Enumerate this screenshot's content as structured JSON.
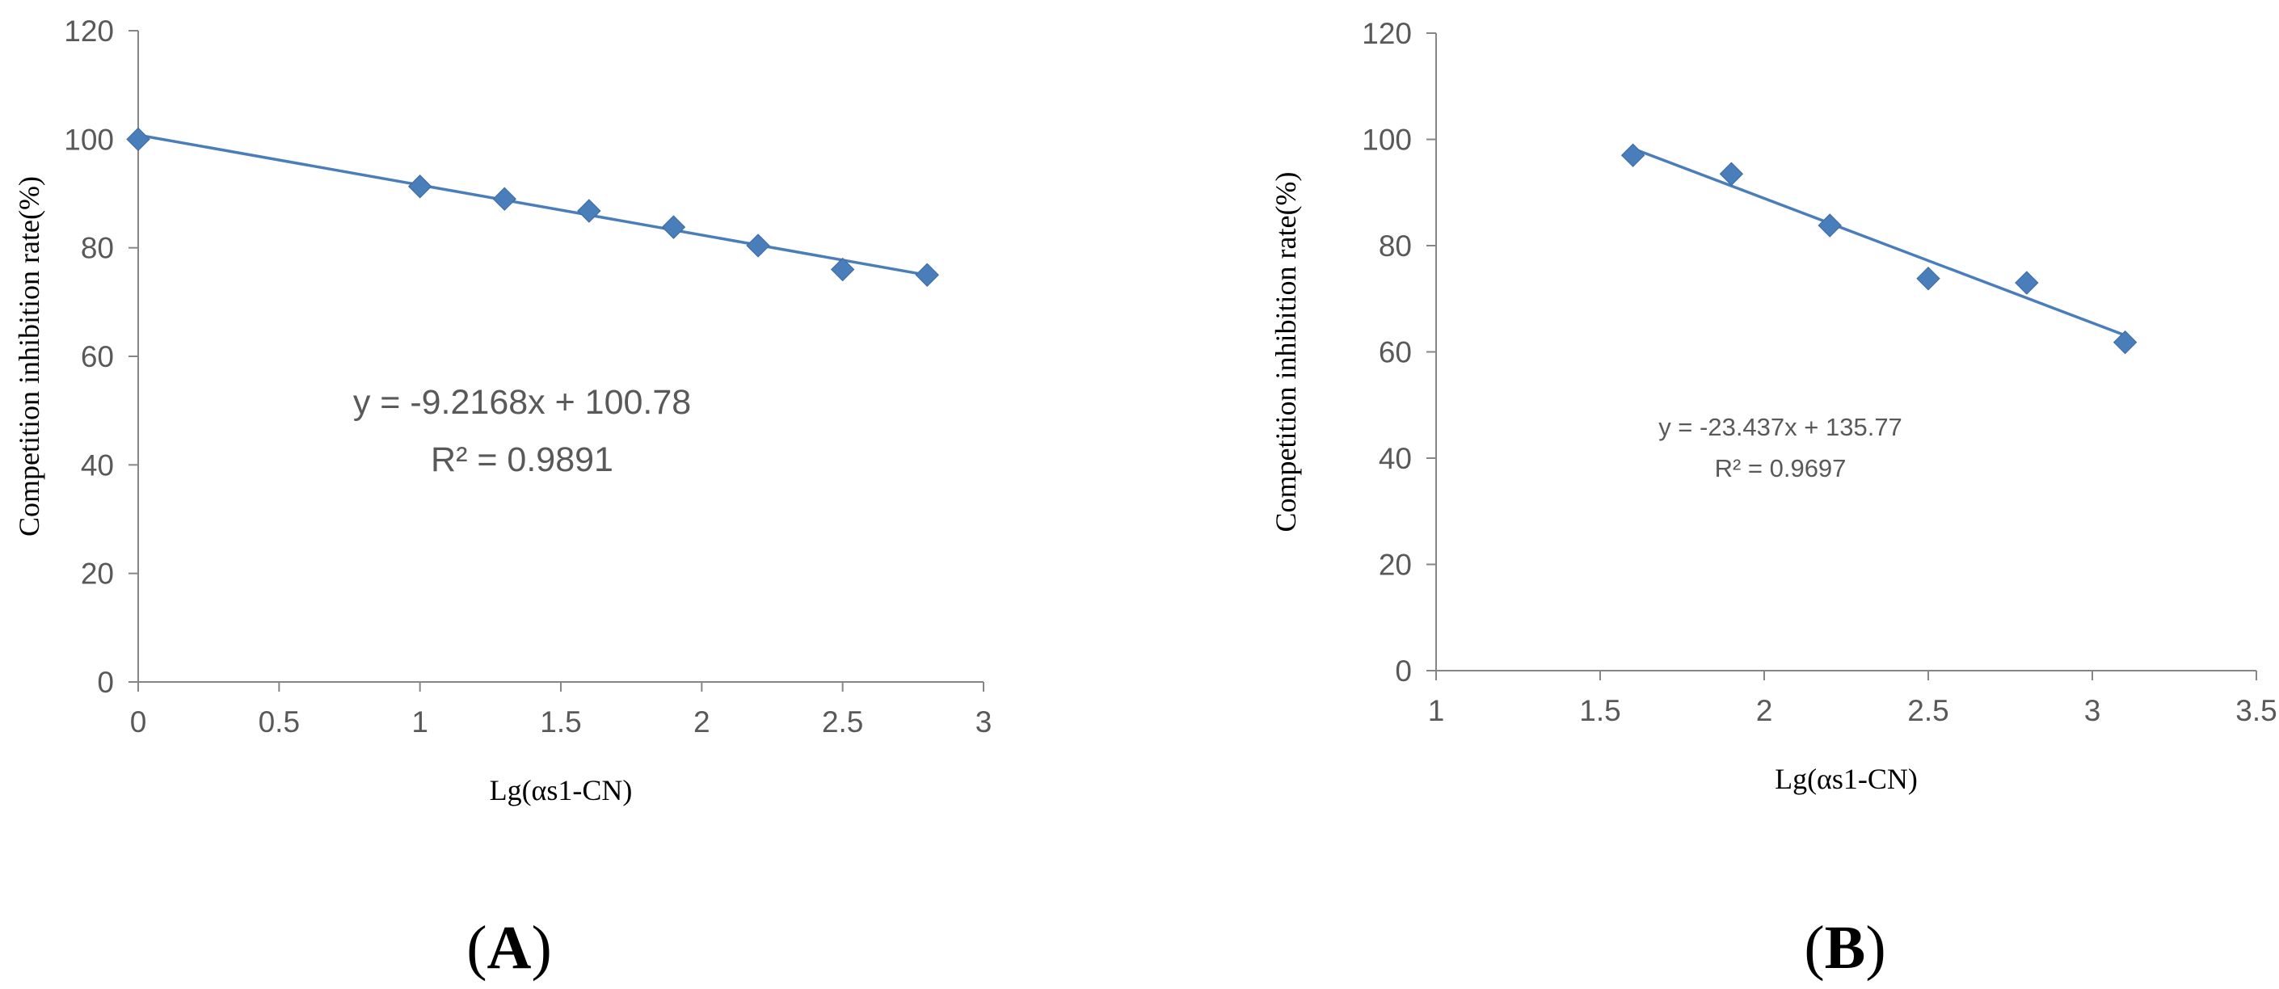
{
  "colors": {
    "series": "#4a7ebb",
    "axis": "#868686",
    "text": "#595959"
  },
  "panels": [
    {
      "label": "A",
      "label_open": "(",
      "label_close": ")",
      "equation": "y = -9.2168x + 100.78",
      "r_squared": "R² = 0.9891",
      "fit_line_x": [
        0,
        2.8
      ]
    },
    {
      "label": "B",
      "label_open": "(",
      "label_close": ")",
      "equation": "y = -23.437x + 135.77",
      "r_squared": "R² = 0.9697",
      "fit_line_x": [
        1.6,
        3.1
      ]
    }
  ],
  "chart_data": [
    {
      "type": "scatter",
      "title": "",
      "xlabel": "Lg(αs1-CN)",
      "ylabel": "Competition  inhibition  rate(%)",
      "xlim": [
        0,
        3
      ],
      "ylim": [
        0,
        120
      ],
      "xticks": [
        "0",
        "0.5",
        "1",
        "1.5",
        "2",
        "2.5",
        "3"
      ],
      "yticks": [
        "0",
        "20",
        "40",
        "60",
        "80",
        "100",
        "120"
      ],
      "grid": false,
      "trendline": {
        "slope": -9.2168,
        "intercept": 100.78,
        "r2": 0.9891
      },
      "points": [
        {
          "x": 0,
          "y": 100
        },
        {
          "x": 1,
          "y": 91.3
        },
        {
          "x": 1.3,
          "y": 89
        },
        {
          "x": 1.6,
          "y": 86.8
        },
        {
          "x": 1.9,
          "y": 83.8
        },
        {
          "x": 2.2,
          "y": 80.4
        },
        {
          "x": 2.5,
          "y": 76
        },
        {
          "x": 2.8,
          "y": 75
        }
      ]
    },
    {
      "type": "scatter",
      "title": "",
      "xlabel": "Lg(αs1-CN)",
      "ylabel": "Competition  inhibition  rate(%)",
      "xlim": [
        1,
        3.5
      ],
      "ylim": [
        0,
        120
      ],
      "xticks": [
        "1",
        "1.5",
        "2",
        "2.5",
        "3",
        "3.5"
      ],
      "yticks": [
        "0",
        "20",
        "40",
        "60",
        "80",
        "100",
        "120"
      ],
      "grid": false,
      "trendline": {
        "slope": -23.437,
        "intercept": 135.77,
        "r2": 0.9697
      },
      "points": [
        {
          "x": 1.6,
          "y": 97
        },
        {
          "x": 1.9,
          "y": 93.5
        },
        {
          "x": 2.2,
          "y": 83.8
        },
        {
          "x": 2.5,
          "y": 73.8
        },
        {
          "x": 2.8,
          "y": 73
        },
        {
          "x": 3.1,
          "y": 61.8
        }
      ]
    }
  ]
}
